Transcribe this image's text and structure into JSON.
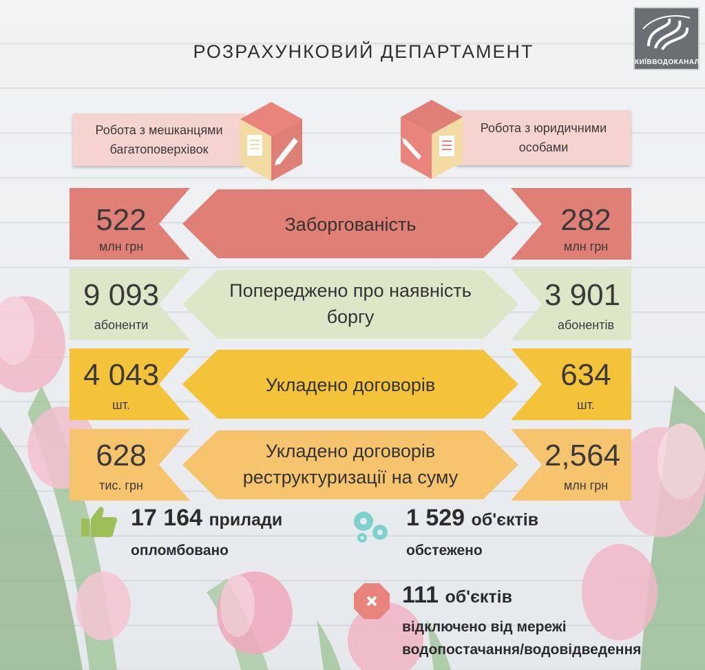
{
  "title": "РОЗРАХУНКОВИЙ ДЕПАРТАМЕНТ",
  "logo": {
    "text": "КИЇВВОДОКАНАЛ"
  },
  "categories": {
    "left": "Робота з мешканцями багатоповерхівок",
    "right": "Робота з юридичними особами"
  },
  "rows": [
    {
      "label": "Заборгованість",
      "left_value": "522",
      "left_unit": "млн грн",
      "right_value": "282",
      "right_unit": "млн грн",
      "color": "#e07f76"
    },
    {
      "label": "Попереджено про наявність боргу",
      "left_value": "9 093",
      "left_unit": "абоненти",
      "right_value": "3 901",
      "right_unit": "абонентів",
      "color": "#dde7c8"
    },
    {
      "label": "Укладено договорів",
      "left_value": "4 043",
      "left_unit": "шт.",
      "right_value": "634",
      "right_unit": "шт.",
      "color": "#f4c33a"
    },
    {
      "label": "Укладено договорів реструктуризації на суму",
      "left_value": "628",
      "left_unit": "тис. грн",
      "right_value": "2,564",
      "right_unit": "млн грн",
      "color": "#f7c46e"
    }
  ],
  "stats": {
    "sealed": {
      "number": "17 164",
      "word": "прилади",
      "sub": "опломбовано"
    },
    "inspected": {
      "number": "1 529",
      "word": "об'єктів",
      "sub": "обстежено"
    },
    "disconnected": {
      "number": "111",
      "word": "об'єктів",
      "sub1": "відключено від мережі",
      "sub2": "водопостачання/водовідведення"
    }
  },
  "icons": {
    "thumbs": "thumbs-up-icon",
    "gears": "gears-icon",
    "stop": "stop-icon",
    "document": "document-icon",
    "pencil": "pencil-icon"
  },
  "colors": {
    "label_bg": "#f5d4d0",
    "cube_top": "#e8847b",
    "cube_left": "#f3dca4",
    "cube_right": "#e07f76"
  }
}
